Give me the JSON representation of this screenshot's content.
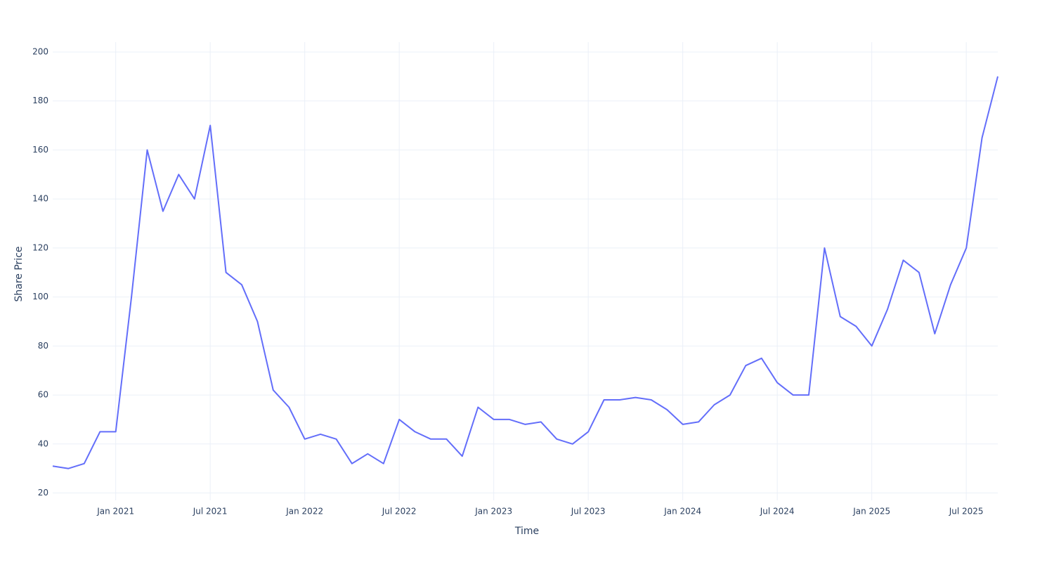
{
  "chart_data": {
    "type": "line",
    "x_label": "Time",
    "y_label": "Share Price",
    "x": [
      "2020-09",
      "2020-10",
      "2020-11",
      "2020-12",
      "2021-01",
      "2021-02",
      "2021-03",
      "2021-04",
      "2021-05",
      "2021-06",
      "2021-07",
      "2021-08",
      "2021-09",
      "2021-10",
      "2021-11",
      "2021-12",
      "2022-01",
      "2022-02",
      "2022-03",
      "2022-04",
      "2022-05",
      "2022-06",
      "2022-07",
      "2022-08",
      "2022-09",
      "2022-10",
      "2022-11",
      "2022-12",
      "2023-01",
      "2023-02",
      "2023-03",
      "2023-04",
      "2023-05",
      "2023-06",
      "2023-07",
      "2023-08",
      "2023-09",
      "2023-10",
      "2023-11",
      "2023-12",
      "2024-01",
      "2024-02",
      "2024-03",
      "2024-04",
      "2024-05",
      "2024-06",
      "2024-07",
      "2024-08",
      "2024-09",
      "2024-10",
      "2024-11",
      "2024-12",
      "2025-01",
      "2025-02",
      "2025-03",
      "2025-04",
      "2025-05",
      "2025-06",
      "2025-07",
      "2025-08",
      "2025-09"
    ],
    "series": [
      {
        "color": "#636efa",
        "values": [
          31,
          30,
          32,
          45,
          45,
          100,
          160,
          135,
          150,
          140,
          170,
          110,
          105,
          90,
          62,
          55,
          42,
          44,
          42,
          32,
          36,
          32,
          50,
          45,
          42,
          42,
          35,
          55,
          50,
          50,
          48,
          49,
          42,
          40,
          45,
          58,
          58,
          59,
          58,
          54,
          48,
          49,
          56,
          60,
          72,
          75,
          65,
          60,
          60,
          120,
          92,
          88,
          80,
          95,
          115,
          110,
          85,
          105,
          120,
          165,
          190
        ]
      }
    ],
    "xlim": [
      "2020-09",
      "2025-09"
    ],
    "xticks": [
      {
        "value": "2021-01",
        "label": "Jan 2021"
      },
      {
        "value": "2021-07",
        "label": "Jul 2021"
      },
      {
        "value": "2022-01",
        "label": "Jan 2022"
      },
      {
        "value": "2022-07",
        "label": "Jul 2022"
      },
      {
        "value": "2023-01",
        "label": "Jan 2023"
      },
      {
        "value": "2023-07",
        "label": "Jul 2023"
      },
      {
        "value": "2024-01",
        "label": "Jan 2024"
      },
      {
        "value": "2024-07",
        "label": "Jul 2024"
      },
      {
        "value": "2025-01",
        "label": "Jan 2025"
      },
      {
        "value": "2025-07",
        "label": "Jul 2025"
      }
    ],
    "ylim": [
      17,
      204
    ],
    "yticks": [
      20,
      40,
      60,
      80,
      100,
      120,
      140,
      160,
      180,
      200
    ],
    "grid": true
  }
}
